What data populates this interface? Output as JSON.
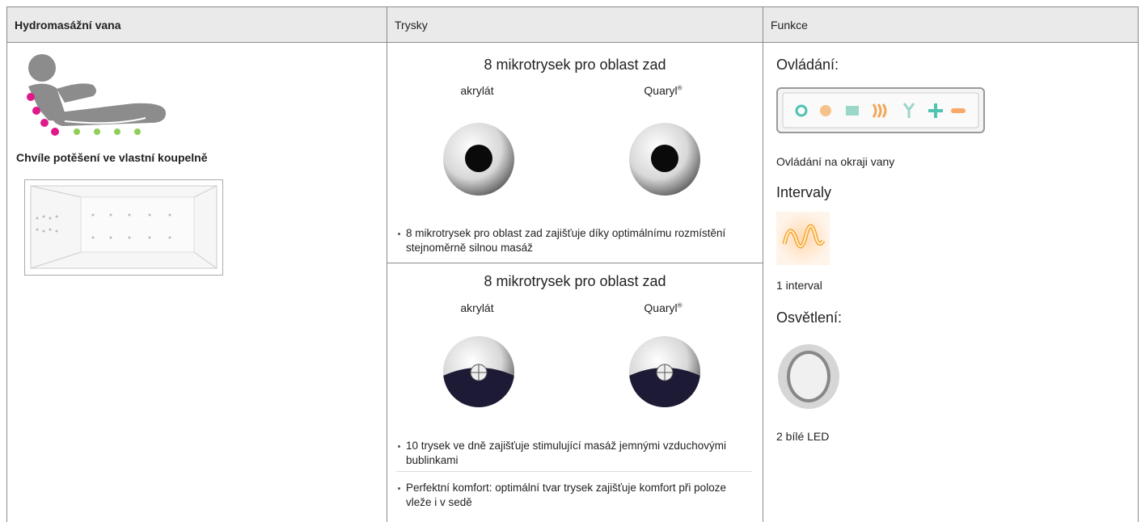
{
  "header": {
    "columns": [
      "Hydromasážní vana",
      "Trysky",
      "Funkce"
    ]
  },
  "bath": {
    "subtitle": "Chvíle potěšení ve vlastní koupelně"
  },
  "jets": [
    {
      "title": "8 mikrotrysek pro oblast zad",
      "materials": [
        {
          "name": "akrylát"
        },
        {
          "name": "Quaryl",
          "mark": "®"
        }
      ],
      "bullets": [
        "8 mikrotrysek pro oblast zad zajišťuje díky optimálnímu rozmístění stejnoměrně silnou masáž"
      ]
    },
    {
      "title": "8 mikrotrysek pro oblast zad",
      "materials": [
        {
          "name": "akrylát"
        },
        {
          "name": "Quaryl",
          "mark": "®"
        }
      ],
      "bullets": [
        "10 trysek ve dně zajišťuje stimulující masáž jemnými vzdu­chovými bublinkami",
        "Perfektní komfort: optimální tvar trysek zajišťuje komfort při poloze vleže i v sedě"
      ]
    }
  ],
  "functions": {
    "sections": [
      {
        "heading": "Ovládání:",
        "caption": "Ovládání na okraji vany"
      },
      {
        "heading": "Intervaly",
        "caption": "1 interval"
      },
      {
        "heading": "Osvětlení:",
        "caption": "2 bílé LED"
      }
    ]
  }
}
